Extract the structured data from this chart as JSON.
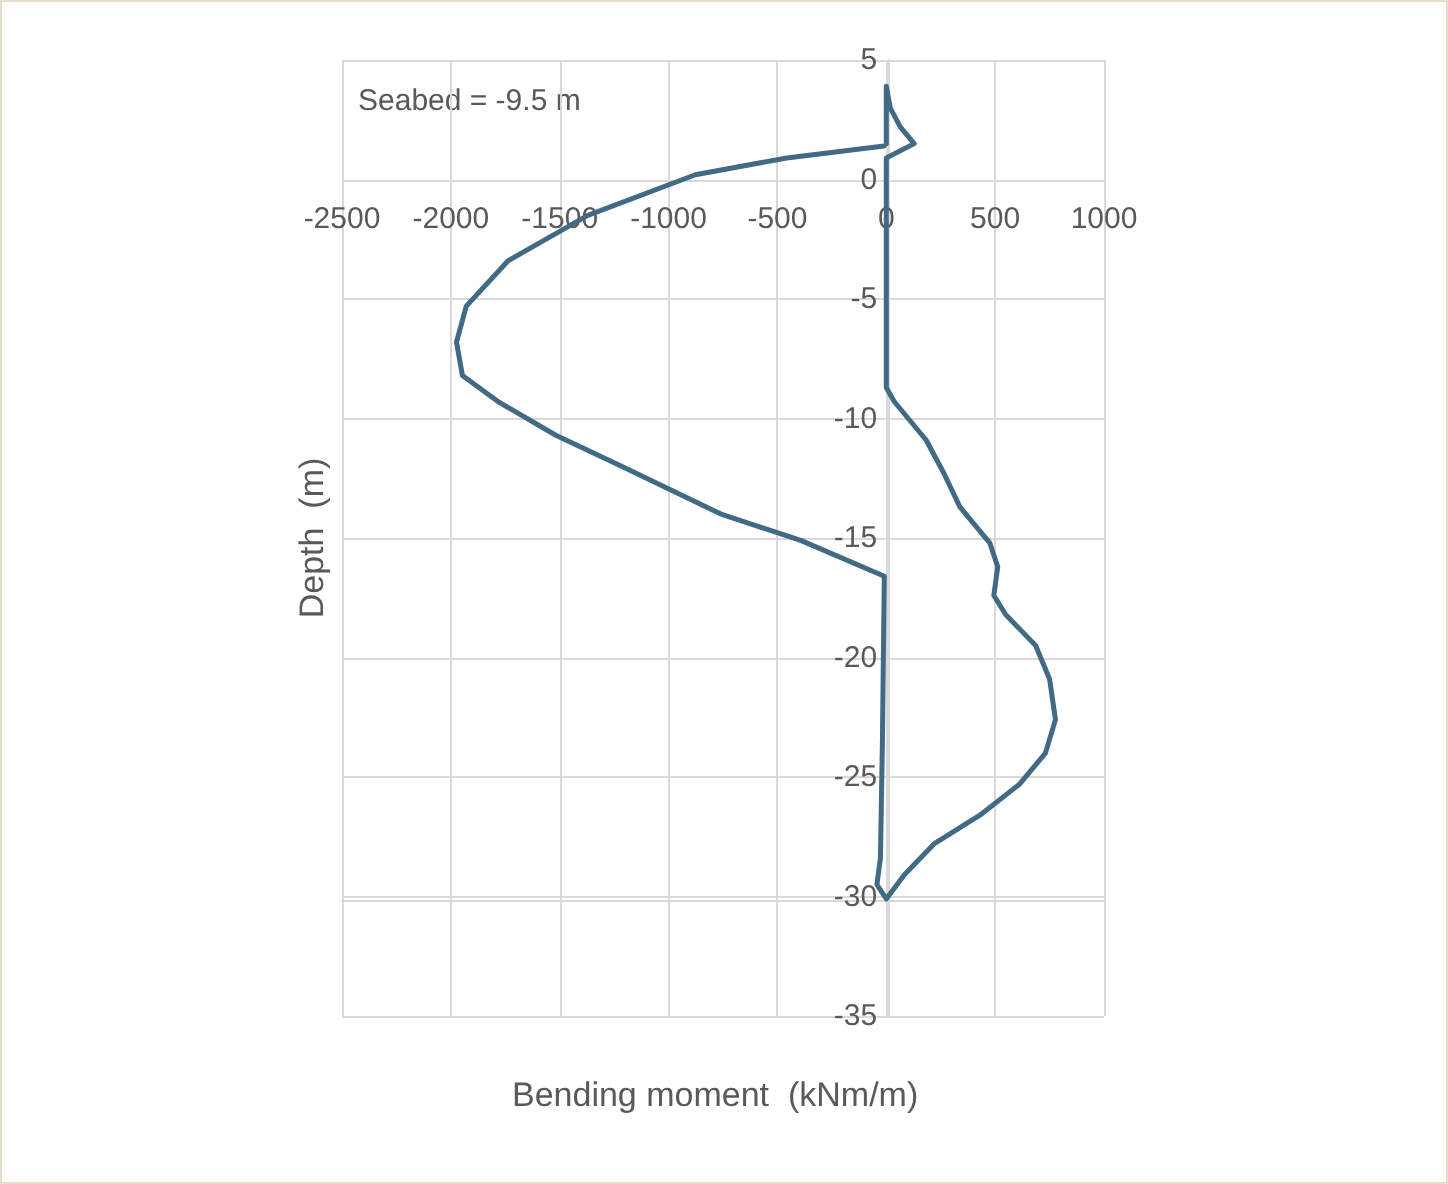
{
  "chart_data": {
    "type": "line",
    "xlabel": "Bending moment  (kNm/m)",
    "ylabel": "Depth  (m)",
    "annotations": [
      "Seabed = -9.5 m"
    ],
    "series": [
      {
        "color": "#416a85",
        "x": [
          0,
          0,
          18,
          64,
          128,
          0,
          0,
          37,
          183,
          265,
          338,
          475,
          512,
          494,
          548,
          686,
          750,
          777,
          731,
          612,
          430,
          219,
          82,
          0,
          -43,
          -27,
          -18,
          -9,
          -393,
          -759,
          -1216,
          -1518,
          -1782,
          -1947,
          -1974,
          -1929,
          -1737,
          -1371,
          -877,
          -457,
          -10
        ],
        "values": [
          1.5,
          3.9,
          3.0,
          2.2,
          1.5,
          0.9,
          -8.7,
          -9.3,
          -10.9,
          -12.3,
          -13.7,
          -15.2,
          -16.2,
          -17.4,
          -18.2,
          -19.5,
          -20.9,
          -22.6,
          -24,
          -25.3,
          -26.6,
          -27.8,
          -29.1,
          -30.1,
          -29.5,
          -28.4,
          -23.7,
          -16.6,
          -15.1,
          -14,
          -12,
          -10.7,
          -9.3,
          -8.2,
          -6.8,
          -5.3,
          -3.4,
          -1.5,
          0.2,
          0.9,
          1.4
        ]
      }
    ],
    "xlim": [
      -2500,
      1000
    ],
    "xticks": [
      -2500,
      -2000,
      -1500,
      -1000,
      -500,
      0,
      500,
      1000
    ],
    "ylim": [
      -35,
      5
    ],
    "yticks": [
      -35,
      -30,
      -25,
      -20,
      -15,
      -10,
      -5,
      0,
      5
    ],
    "grid": true,
    "marker": "none",
    "line_style": "solid"
  }
}
